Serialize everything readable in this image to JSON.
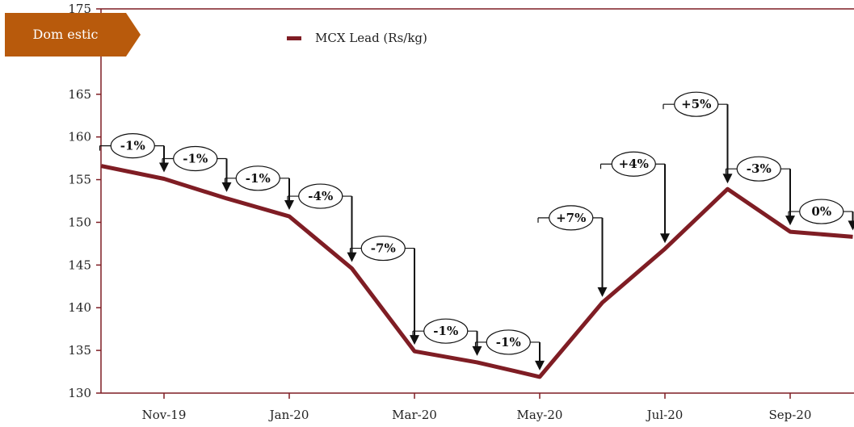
{
  "tag": {
    "label": "Dom estic",
    "color": "#b85a0c"
  },
  "chart_data": {
    "type": "line",
    "title": "",
    "xlabel": "",
    "ylabel": "",
    "ylim": [
      130,
      175
    ],
    "y_ticks": [
      130,
      135,
      140,
      145,
      150,
      155,
      160,
      165,
      170,
      175
    ],
    "x_ticks": [
      "Nov-19",
      "Jan-20",
      "Mar-20",
      "May-20",
      "Jul-20",
      "Sep-20"
    ],
    "legend": {
      "position": "top-center"
    },
    "series": [
      {
        "name": "MCX Lead (Rs/kg)",
        "color": "#7f1d24",
        "points": [
          {
            "x": "Oct-19",
            "y": 156.6
          },
          {
            "x": "Nov-19",
            "y": 155.1
          },
          {
            "x": "Dec-19",
            "y": 152.8
          },
          {
            "x": "Jan-20",
            "y": 150.7
          },
          {
            "x": "Feb-20",
            "y": 144.6
          },
          {
            "x": "Mar-20",
            "y": 134.9
          },
          {
            "x": "Apr-20",
            "y": 133.6
          },
          {
            "x": "May-20",
            "y": 131.9
          },
          {
            "x": "Jun-20",
            "y": 140.6
          },
          {
            "x": "Jul-20",
            "y": 146.9
          },
          {
            "x": "Aug-20",
            "y": 153.9
          },
          {
            "x": "Sep-20",
            "y": 148.9
          },
          {
            "x": "Oct-20",
            "y": 148.3
          }
        ]
      }
    ],
    "annotations": [
      {
        "label": "-1%",
        "to": 1
      },
      {
        "label": "-1%",
        "to": 2
      },
      {
        "label": "-1%",
        "to": 3
      },
      {
        "label": "-4%",
        "to": 4
      },
      {
        "label": "-7%",
        "to": 5
      },
      {
        "label": "-1%",
        "to": 6
      },
      {
        "label": "-1%",
        "to": 7
      },
      {
        "label": "+7%",
        "to": 8
      },
      {
        "label": "+4%",
        "to": 9
      },
      {
        "label": "+5%",
        "to": 10
      },
      {
        "label": "-3%",
        "to": 11
      },
      {
        "label": "0%",
        "to": 12
      }
    ],
    "axis_color": "#7f1d24"
  }
}
